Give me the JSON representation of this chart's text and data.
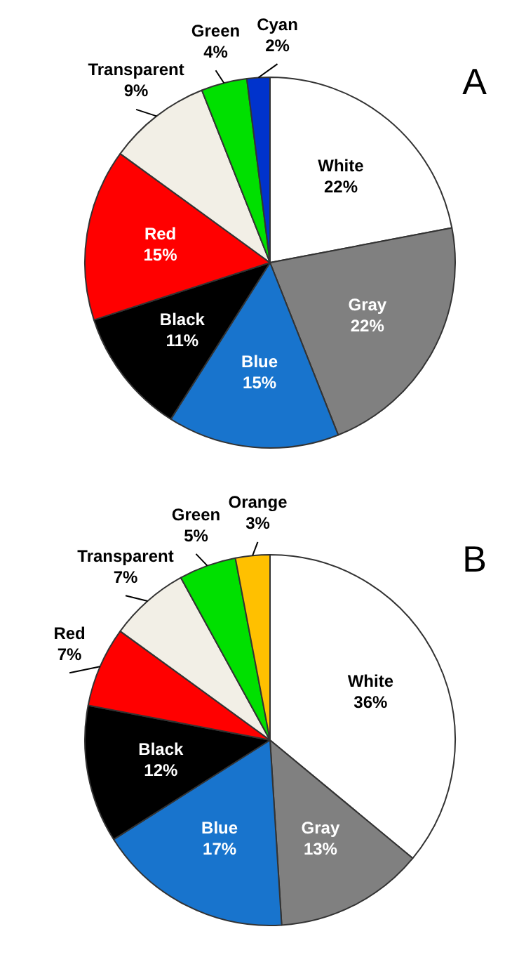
{
  "chart_data": [
    {
      "type": "pie",
      "annotations": [
        "A"
      ],
      "categories": [
        "White",
        "Gray",
        "Blue",
        "Black",
        "Red",
        "Transparent",
        "Green",
        "Cyan"
      ],
      "values": [
        22,
        22,
        15,
        11,
        15,
        9,
        4,
        2
      ],
      "value_labels": [
        "22%",
        "22%",
        "15%",
        "11%",
        "15%",
        "9%",
        "4%",
        "2%"
      ],
      "colors": [
        "#ffffff",
        "#808080",
        "#1874cd",
        "#000000",
        "#ff0000",
        "#f2efe6",
        "#00e000",
        "#0033cc"
      ]
    },
    {
      "type": "pie",
      "annotations": [
        "B"
      ],
      "categories": [
        "White",
        "Gray",
        "Blue",
        "Black",
        "Red",
        "Transparent",
        "Green",
        "Orange"
      ],
      "values": [
        36,
        13,
        17,
        12,
        7,
        7,
        5,
        3
      ],
      "value_labels": [
        "36%",
        "13%",
        "17%",
        "12%",
        "7%",
        "7%",
        "5%",
        "3%"
      ],
      "colors": [
        "#ffffff",
        "#808080",
        "#1874cd",
        "#000000",
        "#ff0000",
        "#f2efe6",
        "#00e000",
        "#ffc000"
      ]
    }
  ]
}
